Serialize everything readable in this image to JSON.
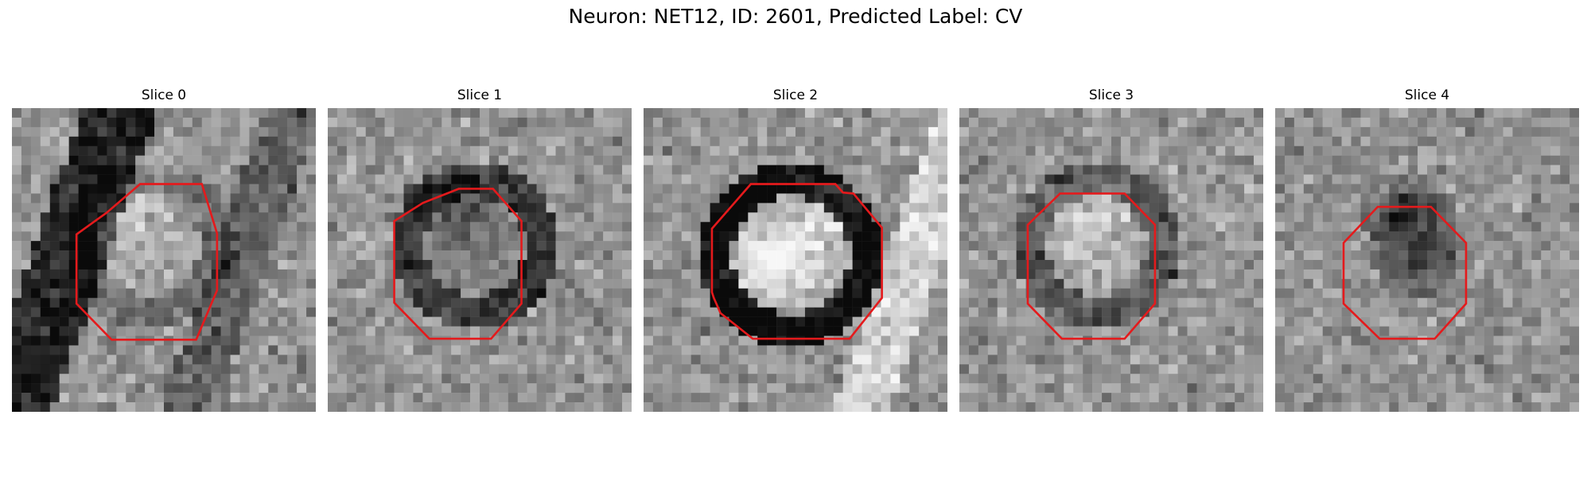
{
  "figure": {
    "title": "Neuron: NET12, ID: 2601, Predicted Label: CV"
  },
  "contour_color": "#e41a1c",
  "panels": [
    {
      "title": "Slice 0",
      "seed": 11
    },
    {
      "title": "Slice 1",
      "seed": 23
    },
    {
      "title": "Slice 2",
      "seed": 37
    },
    {
      "title": "Slice 3",
      "seed": 41
    },
    {
      "title": "Slice 4",
      "seed": 59
    }
  ]
}
